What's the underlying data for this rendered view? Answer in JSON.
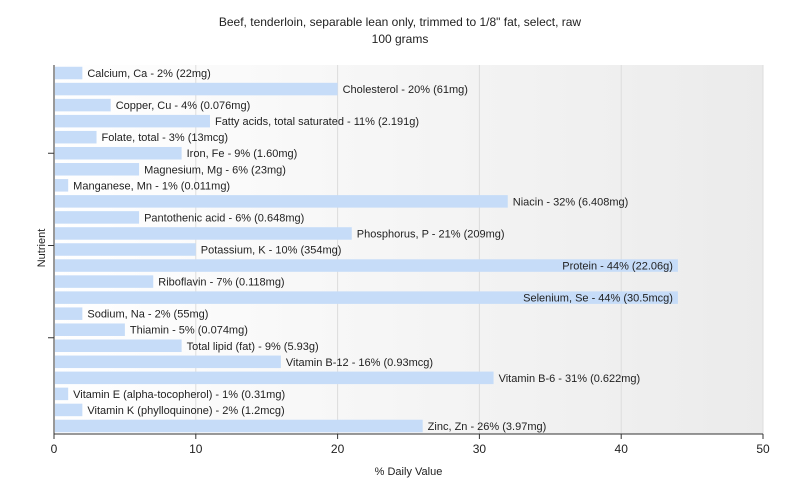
{
  "chart_data": {
    "type": "bar",
    "orientation": "horizontal",
    "title": "Beef, tenderloin, separable lean only, trimmed to 1/8\" fat, select, raw",
    "subtitle": "100 grams",
    "xlabel": "% Daily Value",
    "ylabel": "Nutrient",
    "xlim": [
      0,
      50
    ],
    "xticks": [
      "0",
      "10",
      "20",
      "30",
      "40",
      "50"
    ],
    "grid": "vertical",
    "bar_color": "#c6dcf8",
    "categories": [
      "Calcium, Ca",
      "Cholesterol",
      "Copper, Cu",
      "Fatty acids, total saturated",
      "Folate, total",
      "Iron, Fe",
      "Magnesium, Mg",
      "Manganese, Mn",
      "Niacin",
      "Pantothenic acid",
      "Phosphorus, P",
      "Potassium, K",
      "Protein",
      "Riboflavin",
      "Selenium, Se",
      "Sodium, Na",
      "Thiamin",
      "Total lipid (fat)",
      "Vitamin B-12",
      "Vitamin B-6",
      "Vitamin E (alpha-tocopherol)",
      "Vitamin K (phylloquinone)",
      "Zinc, Zn"
    ],
    "values": [
      2,
      20,
      4,
      11,
      3,
      9,
      6,
      1,
      32,
      6,
      21,
      10,
      44,
      7,
      44,
      2,
      5,
      9,
      16,
      31,
      1,
      2,
      26
    ],
    "labels": [
      "Calcium, Ca - 2% (22mg)",
      "Cholesterol - 20% (61mg)",
      "Copper, Cu - 4% (0.076mg)",
      "Fatty acids, total saturated - 11% (2.191g)",
      "Folate, total - 3% (13mcg)",
      "Iron, Fe - 9% (1.60mg)",
      "Magnesium, Mg - 6% (23mg)",
      "Manganese, Mn - 1% (0.011mg)",
      "Niacin - 32% (6.408mg)",
      "Pantothenic acid - 6% (0.648mg)",
      "Phosphorus, P - 21% (209mg)",
      "Potassium, K - 10% (354mg)",
      "Protein - 44% (22.06g)",
      "Riboflavin - 7% (0.118mg)",
      "Selenium, Se - 44% (30.5mcg)",
      "Sodium, Na - 2% (55mg)",
      "Thiamin - 5% (0.074mg)",
      "Total lipid (fat) - 9% (5.93g)",
      "Vitamin B-12 - 16% (0.93mcg)",
      "Vitamin B-6 - 31% (0.622mg)",
      "Vitamin E (alpha-tocopherol) - 1% (0.31mg)",
      "Vitamin K (phylloquinone) - 2% (1.2mcg)",
      "Zinc, Zn - 26% (3.97mg)"
    ]
  }
}
